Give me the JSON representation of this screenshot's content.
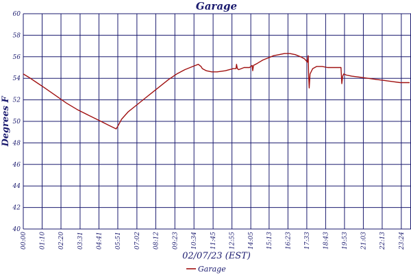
{
  "chart_data": {
    "type": "line",
    "title": "Garage",
    "xlabel": "02/07/23 (EST)",
    "ylabel": "Degrees F",
    "ylim": [
      40,
      60
    ],
    "yticks": [
      40,
      42,
      44,
      46,
      48,
      50,
      52,
      54,
      56,
      58,
      60
    ],
    "xlim": [
      0,
      1440
    ],
    "x_tick_labels": [
      "00:00",
      "01:10",
      "02:20",
      "03:31",
      "04:41",
      "05:51",
      "07:02",
      "08:12",
      "09:23",
      "10:34",
      "11:45",
      "12:55",
      "14:05",
      "15:13",
      "16:23",
      "17:33",
      "18:43",
      "19:53",
      "21:03",
      "22:13",
      "23:24"
    ],
    "x_tick_values": [
      0,
      70,
      140,
      211,
      281,
      351,
      422,
      492,
      563,
      634,
      705,
      775,
      845,
      913,
      983,
      1053,
      1123,
      1193,
      1263,
      1333,
      1404
    ],
    "grid": true,
    "legend_position": "bottom-center",
    "series": [
      {
        "name": "Garage",
        "color": "#a01010",
        "x": [
          0,
          20,
          50,
          80,
          120,
          160,
          200,
          240,
          280,
          320,
          345,
          352,
          365,
          390,
          420,
          450,
          480,
          510,
          540,
          570,
          600,
          630,
          650,
          660,
          665,
          680,
          700,
          720,
          750,
          780,
          790,
          792,
          795,
          800,
          820,
          840,
          850,
          852,
          855,
          870,
          890,
          910,
          930,
          950,
          970,
          990,
          1010,
          1030,
          1045,
          1055,
          1058,
          1060,
          1062,
          1065,
          1075,
          1090,
          1110,
          1130,
          1150,
          1170,
          1180,
          1183,
          1186,
          1190,
          1200,
          1220,
          1250,
          1280,
          1310,
          1340,
          1370,
          1400,
          1435
        ],
        "y": [
          54.4,
          54.1,
          53.6,
          53.1,
          52.4,
          51.7,
          51.1,
          50.6,
          50.1,
          49.6,
          49.3,
          49.6,
          50.2,
          50.9,
          51.5,
          52.1,
          52.7,
          53.3,
          53.9,
          54.4,
          54.8,
          55.1,
          55.3,
          55.1,
          54.9,
          54.7,
          54.6,
          54.6,
          54.7,
          54.9,
          54.9,
          55.3,
          54.9,
          54.8,
          55.0,
          55.0,
          55.2,
          54.7,
          55.2,
          55.4,
          55.7,
          55.9,
          56.1,
          56.2,
          56.3,
          56.3,
          56.2,
          56.0,
          55.8,
          55.5,
          56.1,
          54.2,
          53.1,
          54.4,
          54.9,
          55.1,
          55.1,
          55.0,
          55.0,
          55.0,
          55.0,
          53.5,
          54.2,
          54.4,
          54.3,
          54.2,
          54.1,
          54.0,
          53.9,
          53.8,
          53.7,
          53.6,
          53.6
        ]
      }
    ]
  }
}
